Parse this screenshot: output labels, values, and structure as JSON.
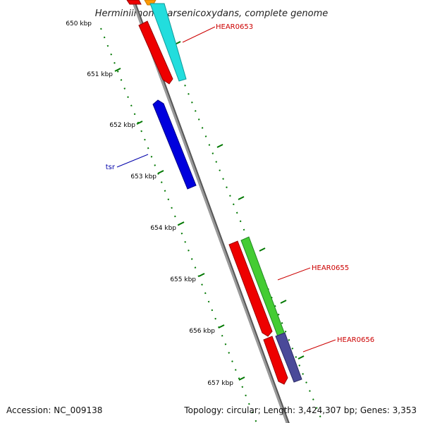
{
  "title": "Herminiimonas arsenicoxydans, complete genome",
  "ticks": [
    "650 kbp",
    "651 kbp",
    "652 kbp",
    "653 kbp",
    "654 kbp",
    "655 kbp",
    "656 kbp",
    "657 kbp"
  ],
  "genes": {
    "hear0653": "HEAR0653",
    "tsr": "tsr",
    "hear0655": "HEAR0655",
    "hear0656": "HEAR0656"
  },
  "footer": {
    "accession": "Accession: NC_009138",
    "stats": "Topology: circular; Length: 3,424,307 bp; Genes: 3,353"
  },
  "colors": {
    "label_red": "#cc0000",
    "label_blue": "#0000aa",
    "tick_green": "#007700",
    "gene_red": "#ee0000",
    "gene_cyan": "#22dddd",
    "gene_blue": "#0000dd",
    "gene_green": "#44cc33",
    "gene_purple": "#4a4a99",
    "gene_orange": "#ff9900",
    "backbone": "#888888"
  }
}
